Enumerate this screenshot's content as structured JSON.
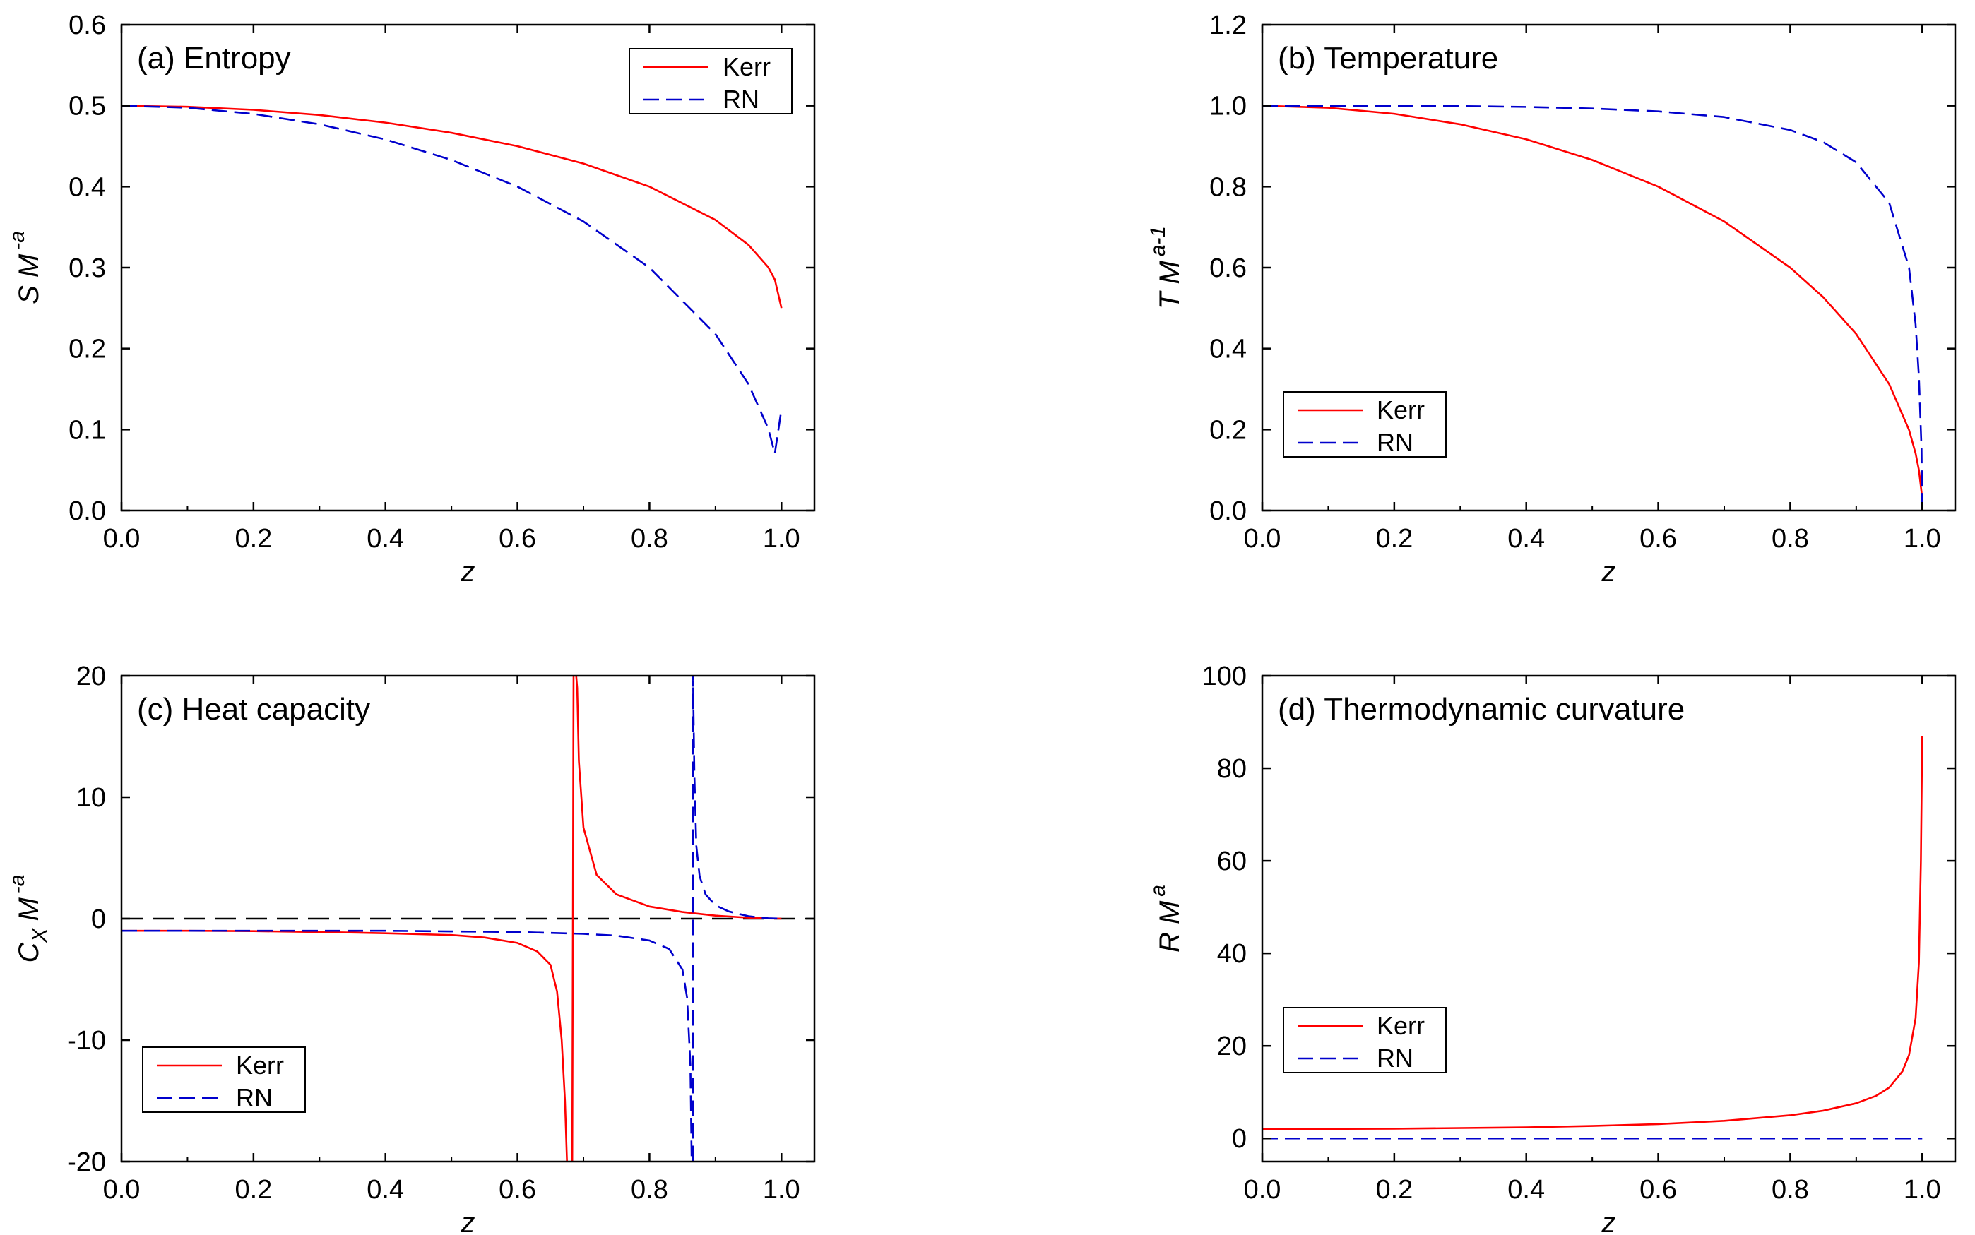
{
  "figure": {
    "series_colors": {
      "Kerr": "#ff0000",
      "RN": "#0000cc"
    },
    "zero_line_color": "#000000"
  },
  "chart_data": [
    {
      "id": "a",
      "type": "line",
      "title": "(a) Entropy",
      "xlabel": "z",
      "ylabel": {
        "base": "S M",
        "sup": "-a",
        "sub": ""
      },
      "xlim": [
        0,
        1.05
      ],
      "ylim": [
        0,
        0.6
      ],
      "xticks": [
        0.0,
        0.2,
        0.4,
        0.6,
        0.8,
        1.0
      ],
      "xtick_labels": [
        "0.0",
        "0.2",
        "0.4",
        "0.6",
        "0.8",
        "1.0"
      ],
      "yticks": [
        0.0,
        0.1,
        0.2,
        0.3,
        0.4,
        0.5,
        0.6
      ],
      "ytick_labels": [
        "0.0",
        "0.1",
        "0.2",
        "0.3",
        "0.4",
        "0.5",
        "0.6"
      ],
      "legend": {
        "position": "top-right",
        "entries": [
          "Kerr",
          "RN"
        ]
      },
      "series": [
        {
          "name": "Kerr",
          "style": "solid",
          "x": [
            0,
            0.1,
            0.2,
            0.3,
            0.4,
            0.5,
            0.6,
            0.7,
            0.8,
            0.9,
            0.95,
            0.98,
            0.99,
            1.0
          ],
          "y": [
            0.5,
            0.4987,
            0.4949,
            0.4885,
            0.4791,
            0.4665,
            0.45,
            0.4285,
            0.4,
            0.3589,
            0.3281,
            0.3005,
            0.2853,
            0.25
          ]
        },
        {
          "name": "RN",
          "style": "dashed",
          "x": [
            0,
            0.1,
            0.2,
            0.3,
            0.4,
            0.5,
            0.6,
            0.7,
            0.8,
            0.9,
            0.95,
            0.98,
            0.99,
            1.0
          ],
          "y": [
            0.5,
            0.4975,
            0.4899,
            0.477,
            0.4583,
            0.433,
            0.4,
            0.357,
            0.3,
            0.2179,
            0.1562,
            0.1012,
            0.0705,
            0.125
          ]
        }
      ]
    },
    {
      "id": "b",
      "type": "line",
      "title": "(b) Temperature",
      "xlabel": "z",
      "ylabel": {
        "base": "T M",
        "sup": "a-1",
        "sub": ""
      },
      "xlim": [
        0,
        1.05
      ],
      "ylim": [
        0,
        1.2
      ],
      "xticks": [
        0.0,
        0.2,
        0.4,
        0.6,
        0.8,
        1.0
      ],
      "xtick_labels": [
        "0.0",
        "0.2",
        "0.4",
        "0.6",
        "0.8",
        "1.0"
      ],
      "yticks": [
        0.0,
        0.2,
        0.4,
        0.6,
        0.8,
        1.0,
        1.2
      ],
      "ytick_labels": [
        "0.0",
        "0.2",
        "0.4",
        "0.6",
        "0.8",
        "1.0",
        "1.2"
      ],
      "legend": {
        "position": "bottom-left",
        "entries": [
          "Kerr",
          "RN"
        ]
      },
      "series": [
        {
          "name": "Kerr",
          "style": "solid",
          "x": [
            0,
            0.1,
            0.2,
            0.3,
            0.4,
            0.5,
            0.6,
            0.7,
            0.8,
            0.85,
            0.9,
            0.95,
            0.98,
            0.99,
            0.995,
            0.999,
            1.0
          ],
          "y": [
            1.0,
            0.995,
            0.98,
            0.954,
            0.917,
            0.866,
            0.8,
            0.714,
            0.6,
            0.527,
            0.436,
            0.312,
            0.199,
            0.141,
            0.1,
            0.045,
            0.0
          ]
        },
        {
          "name": "RN",
          "style": "dashed",
          "x": [
            0,
            0.1,
            0.2,
            0.3,
            0.4,
            0.5,
            0.6,
            0.7,
            0.8,
            0.85,
            0.9,
            0.95,
            0.98,
            0.99,
            0.995,
            0.999,
            1.0
          ],
          "y": [
            1.0,
            1.0,
            1.0,
            0.999,
            0.997,
            0.993,
            0.986,
            0.972,
            0.94,
            0.91,
            0.86,
            0.76,
            0.6,
            0.46,
            0.33,
            0.15,
            0.0
          ]
        }
      ]
    },
    {
      "id": "c",
      "type": "line",
      "title": "(c) Heat capacity",
      "xlabel": "z",
      "ylabel": {
        "base": "C",
        "sub": "X",
        "sup": "-a",
        "base2": "M"
      },
      "xlim": [
        0,
        1.05
      ],
      "ylim": [
        -20,
        20
      ],
      "xticks": [
        0.0,
        0.2,
        0.4,
        0.6,
        0.8,
        1.0
      ],
      "xtick_labels": [
        "0.0",
        "0.2",
        "0.4",
        "0.6",
        "0.8",
        "1.0"
      ],
      "yticks": [
        -20,
        -10,
        0,
        10,
        20
      ],
      "ytick_labels": [
        "-20",
        "-10",
        "0",
        "10",
        "20"
      ],
      "zero_line": true,
      "legend": {
        "position": "bottom-left",
        "entries": [
          "Kerr",
          "RN"
        ]
      },
      "series": [
        {
          "name": "Kerr",
          "style": "solid",
          "x": [
            0,
            0.1,
            0.2,
            0.3,
            0.4,
            0.5,
            0.55,
            0.6,
            0.63,
            0.65,
            0.66,
            0.667,
            0.672,
            0.675,
            null,
            0.683,
            0.685,
            null,
            0.689,
            0.6905,
            0.693,
            0.7,
            0.72,
            0.75,
            0.8,
            0.85,
            0.9,
            0.95,
            0.98,
            1.0
          ],
          "y": [
            -1.0,
            -1.0,
            -1.03,
            -1.1,
            -1.2,
            -1.35,
            -1.55,
            -2.0,
            -2.7,
            -3.8,
            -6,
            -10,
            -15,
            -20,
            null,
            -20,
            20,
            null,
            20,
            19,
            13,
            7.5,
            3.6,
            2.0,
            1.0,
            0.55,
            0.25,
            0.08,
            0.02,
            0.0
          ]
        },
        {
          "name": "RN",
          "style": "dashed",
          "x": [
            0,
            0.1,
            0.2,
            0.3,
            0.4,
            0.5,
            0.6,
            0.7,
            0.75,
            0.8,
            0.83,
            0.85,
            0.857,
            0.862,
            0.864,
            0.866,
            0.866,
            0.868,
            0.871,
            0.876,
            0.885,
            0.9,
            0.92,
            0.95,
            0.98,
            1.0
          ],
          "y": [
            -1.0,
            -1.0,
            -1.0,
            -1.0,
            -1.0,
            -1.05,
            -1.1,
            -1.25,
            -1.4,
            -1.8,
            -2.5,
            -4.2,
            -6.5,
            -12,
            -20,
            -20,
            20,
            12,
            6,
            3.5,
            2.0,
            1.1,
            0.6,
            0.2,
            0.03,
            0.0
          ]
        }
      ]
    },
    {
      "id": "d",
      "type": "line",
      "title": "(d) Thermodynamic curvature",
      "xlabel": "z",
      "ylabel": {
        "base": "R M",
        "sup": "a",
        "sub": ""
      },
      "xlim": [
        0,
        1.05
      ],
      "ylim": [
        -5,
        100
      ],
      "xticks": [
        0.0,
        0.2,
        0.4,
        0.6,
        0.8,
        1.0
      ],
      "xtick_labels": [
        "0.0",
        "0.2",
        "0.4",
        "0.6",
        "0.8",
        "1.0"
      ],
      "yticks": [
        0,
        20,
        40,
        60,
        80,
        100
      ],
      "ytick_labels": [
        "0",
        "20",
        "40",
        "60",
        "80",
        "100"
      ],
      "legend": {
        "position": "bottom-left",
        "entries": [
          "Kerr",
          "RN"
        ]
      },
      "series": [
        {
          "name": "Kerr",
          "style": "solid",
          "x": [
            0,
            0.2,
            0.4,
            0.5,
            0.6,
            0.7,
            0.8,
            0.85,
            0.9,
            0.93,
            0.95,
            0.97,
            0.98,
            0.99,
            0.995,
            0.998,
            1.0
          ],
          "y": [
            2.0,
            2.1,
            2.4,
            2.7,
            3.1,
            3.8,
            5.0,
            6.0,
            7.6,
            9.2,
            11.0,
            14.5,
            18.0,
            26.0,
            38.0,
            60.0,
            87.0
          ]
        },
        {
          "name": "RN",
          "style": "dashed",
          "x": [
            0,
            1.0
          ],
          "y": [
            0,
            0
          ]
        }
      ]
    }
  ]
}
